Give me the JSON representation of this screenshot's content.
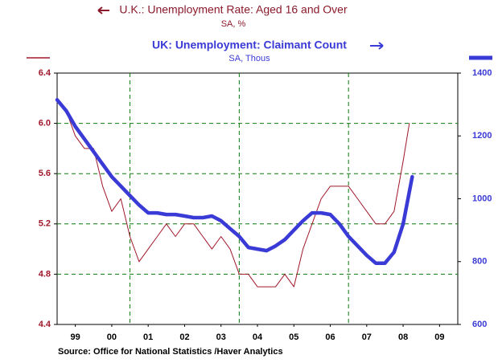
{
  "chart_data": {
    "type": "line",
    "source": "Source:  Office for National Statistics /Haver Analytics",
    "xlim": [
      1999,
      2010
    ],
    "xticks": [
      {
        "value": 1999.5,
        "label": "99"
      },
      {
        "value": 2000.5,
        "label": "00"
      },
      {
        "value": 2001.5,
        "label": "01"
      },
      {
        "value": 2002.5,
        "label": "02"
      },
      {
        "value": 2003.5,
        "label": "03"
      },
      {
        "value": 2004.5,
        "label": "04"
      },
      {
        "value": 2005.5,
        "label": "05"
      },
      {
        "value": 2006.5,
        "label": "06"
      },
      {
        "value": 2007.5,
        "label": "07"
      },
      {
        "value": 2008.5,
        "label": "08"
      },
      {
        "value": 2009.5,
        "label": "09"
      }
    ],
    "x_grid": [
      2001,
      2004,
      2007
    ],
    "ylim": [
      4.4,
      6.4
    ],
    "yticks": [
      4.4,
      4.8,
      5.2,
      5.6,
      {
        "value": 6.0,
        "label": "6.0"
      },
      6.4
    ],
    "y2lim": [
      600,
      1400
    ],
    "y2ticks": [
      600,
      800,
      1000,
      1200,
      1400
    ],
    "grid": true,
    "series": [
      {
        "name": "U.K.: Unemployment Rate: Aged 16 and Over",
        "unit_label": "SA, %",
        "color": "#a0182a",
        "x": [
          1999.0,
          1999.25,
          1999.5,
          1999.75,
          2000.0,
          2000.25,
          2000.5,
          2000.75,
          2001.0,
          2001.25,
          2001.5,
          2001.75,
          2002.0,
          2002.25,
          2002.5,
          2002.75,
          2003.0,
          2003.25,
          2003.5,
          2003.75,
          2004.0,
          2004.25,
          2004.5,
          2004.75,
          2005.0,
          2005.25,
          2005.5,
          2005.75,
          2006.0,
          2006.25,
          2006.5,
          2006.75,
          2007.0,
          2007.25,
          2007.5,
          2007.75,
          2008.0,
          2008.25,
          2008.5,
          2008.67
        ],
        "values": [
          6.2,
          6.1,
          5.9,
          5.8,
          5.8,
          5.5,
          5.3,
          5.4,
          5.1,
          4.9,
          5.0,
          5.1,
          5.2,
          5.1,
          5.2,
          5.2,
          5.1,
          5.0,
          5.1,
          5.0,
          4.8,
          4.8,
          4.7,
          4.7,
          4.7,
          4.8,
          4.7,
          5.0,
          5.2,
          5.4,
          5.5,
          5.5,
          5.5,
          5.4,
          5.3,
          5.2,
          5.2,
          5.3,
          5.7,
          6.0
        ]
      },
      {
        "name": "UK: Unemployment: Claimant Count",
        "unit_label": "SA, Thous",
        "color": "#3a3ad6",
        "axis": "y2",
        "x": [
          1999.0,
          1999.25,
          1999.5,
          1999.75,
          2000.0,
          2000.25,
          2000.5,
          2000.75,
          2001.0,
          2001.25,
          2001.5,
          2001.75,
          2002.0,
          2002.25,
          2002.5,
          2002.75,
          2003.0,
          2003.25,
          2003.5,
          2003.75,
          2004.0,
          2004.25,
          2004.5,
          2004.75,
          2005.0,
          2005.25,
          2005.5,
          2005.75,
          2006.0,
          2006.25,
          2006.5,
          2006.75,
          2007.0,
          2007.25,
          2007.5,
          2007.75,
          2008.0,
          2008.25,
          2008.5,
          2008.75
        ],
        "values": [
          1315,
          1280,
          1230,
          1190,
          1150,
          1110,
          1070,
          1040,
          1010,
          980,
          955,
          955,
          950,
          950,
          945,
          940,
          940,
          945,
          930,
          905,
          880,
          845,
          840,
          835,
          850,
          870,
          900,
          930,
          955,
          955,
          950,
          920,
          880,
          850,
          820,
          795,
          795,
          830,
          920,
          1070
        ]
      }
    ]
  }
}
